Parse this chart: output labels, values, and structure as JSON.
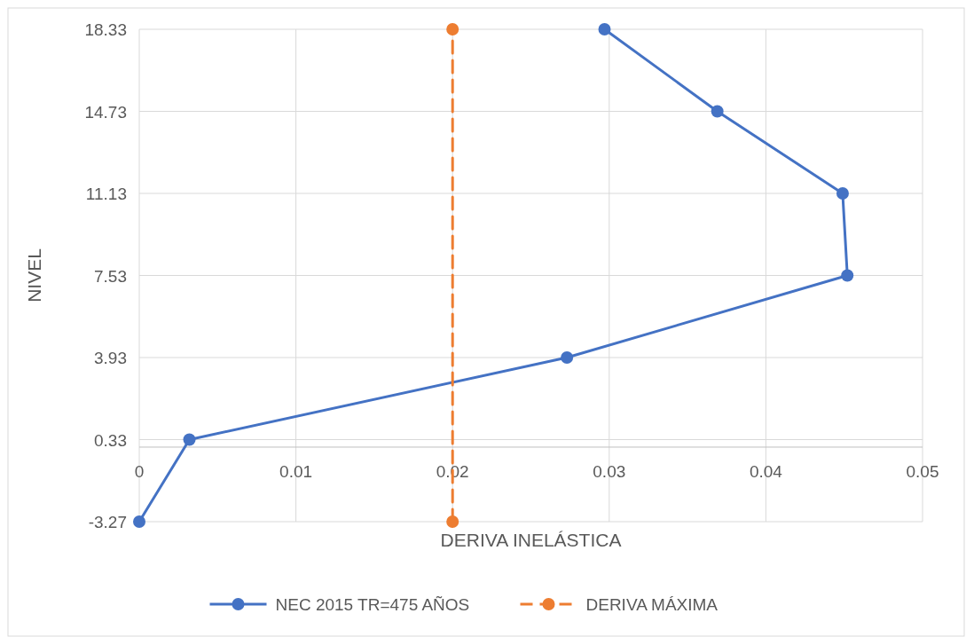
{
  "chart_data": {
    "type": "line",
    "xlabel": "DERIVA INELÁSTICA",
    "ylabel": "NIVEL",
    "xlim": [
      0,
      0.05
    ],
    "xticks": [
      0,
      0.01,
      0.02,
      0.03,
      0.04,
      0.05
    ],
    "ylim": [
      -3.27,
      18.33
    ],
    "yticks": [
      -3.27,
      0.33,
      3.93,
      7.53,
      11.13,
      14.73,
      18.33
    ],
    "grid": true,
    "legend": "bottom",
    "marker": "circle",
    "series": [
      {
        "name": "NEC 2015 TR=475 AÑOS",
        "color": "#4472c4",
        "line_style": "solid",
        "x": [
          0,
          0.0032,
          0.0273,
          0.0452,
          0.0449,
          0.0369,
          0.0297
        ],
        "values": [
          -3.27,
          0.33,
          3.93,
          7.53,
          11.13,
          14.73,
          18.33
        ]
      },
      {
        "name": "DERIVA MÁXIMA",
        "color": "#ed7d31",
        "line_style": "dashed",
        "x": [
          0.02,
          0.02
        ],
        "values": [
          -3.27,
          18.33
        ]
      }
    ]
  }
}
